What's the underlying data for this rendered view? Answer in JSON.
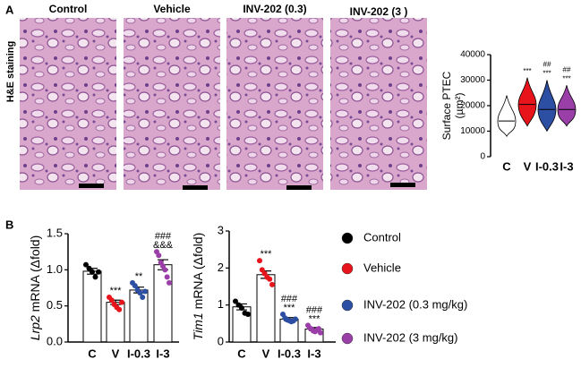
{
  "panels": [
    "A",
    "B"
  ],
  "images": {
    "row_label": "H&E staining",
    "titles": [
      "Control",
      "Vehicle",
      "INV-202 (0.3)",
      "INV-202 (3 )"
    ]
  },
  "legend": [
    {
      "name": "Control",
      "color": "#000000"
    },
    {
      "name": "Vehicle",
      "color": "#e8141c"
    },
    {
      "name": "INV-202 (0.3 mg/kg)",
      "color": "#2c4fa3"
    },
    {
      "name": "INV-202 (3 mg/kg)",
      "color": "#9b3fa8"
    }
  ],
  "chart_data": [
    {
      "type": "violin",
      "y_label": "Surface  PTEC",
      "y_label_unit": "(µm²)",
      "categories": [
        "C",
        "V",
        "I-0.3",
        "I-3"
      ],
      "colors": [
        "#000000",
        "#e8141c",
        "#2c4fa3",
        "#9b3fa8"
      ],
      "values": [
        14000,
        20500,
        18500,
        18500
      ],
      "min": [
        8000,
        12000,
        10000,
        12000
      ],
      "max": [
        24000,
        31000,
        30000,
        28000
      ],
      "annotations": [
        [],
        [
          "***"
        ],
        [
          "##",
          "***"
        ],
        [
          "##",
          "***"
        ]
      ],
      "ylim": [
        0,
        40000
      ],
      "yticks": [
        0,
        10000,
        20000,
        30000,
        40000
      ]
    },
    {
      "type": "bar",
      "y_label_gene": "Lrp2",
      "y_label": "mRNA (Δfold)",
      "categories": [
        "C",
        "V",
        "I-0.3",
        "I-3"
      ],
      "colors": [
        "#000000",
        "#e8141c",
        "#2c4fa3",
        "#9b3fa8"
      ],
      "values": [
        0.98,
        0.55,
        0.72,
        1.07
      ],
      "errors": [
        0.04,
        0.03,
        0.04,
        0.07
      ],
      "points": [
        [
          1.07,
          1.02,
          0.97,
          0.9,
          0.97
        ],
        [
          0.62,
          0.58,
          0.52,
          0.48,
          0.45,
          0.55
        ],
        [
          0.82,
          0.78,
          0.72,
          0.68,
          0.62,
          0.7
        ],
        [
          1.25,
          1.2,
          1.1,
          1.05,
          1.0,
          0.9,
          0.82
        ]
      ],
      "annotations": [
        [],
        [
          "***"
        ],
        [
          "**"
        ],
        [
          "###",
          "&&&"
        ]
      ],
      "ylim": [
        0,
        1.5
      ],
      "yticks": [
        {
          "value": 0,
          "label": "0.0"
        },
        0.5,
        {
          "value": 1,
          "label": "1.0"
        },
        1.5
      ]
    },
    {
      "type": "bar",
      "y_label_gene": "Tim1",
      "y_label": "mRNA (Δfold)",
      "categories": [
        "C",
        "V",
        "I-0.3",
        "I-3"
      ],
      "colors": [
        "#000000",
        "#e8141c",
        "#2c4fa3",
        "#9b3fa8"
      ],
      "values": [
        0.95,
        1.82,
        0.62,
        0.35
      ],
      "errors": [
        0.08,
        0.1,
        0.04,
        0.04
      ],
      "points": [
        [
          1.1,
          1.0,
          0.92,
          0.78,
          0.75
        ],
        [
          2.2,
          1.95,
          1.85,
          1.75,
          1.7,
          1.55
        ],
        [
          0.75,
          0.65,
          0.6,
          0.58,
          0.55,
          0.57,
          0.62
        ],
        [
          0.45,
          0.38,
          0.35,
          0.3,
          0.28,
          0.32,
          0.36,
          0.25
        ]
      ],
      "annotations": [
        [],
        [
          "***"
        ],
        [
          "###",
          "***"
        ],
        [
          "###",
          "***"
        ]
      ],
      "ylim": [
        0,
        3
      ],
      "yticks": [
        0,
        1,
        2,
        3
      ]
    }
  ]
}
